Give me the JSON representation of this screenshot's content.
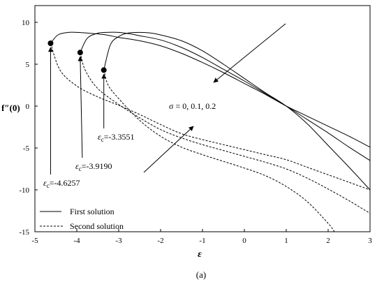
{
  "chart_data": {
    "type": "line",
    "title": "",
    "xlabel": "ε",
    "ylabel": "f″(0)",
    "xlim": [
      -5,
      3
    ],
    "ylim": [
      -15,
      12
    ],
    "x_ticks": [
      -5,
      -4,
      -3,
      -2,
      -1,
      0,
      1,
      2,
      3
    ],
    "y_ticks": [
      10,
      5,
      0,
      -5,
      -10,
      -15
    ],
    "grid": false,
    "legend_position": "bottom-left",
    "legend": [
      {
        "label": "First solution",
        "style": "solid"
      },
      {
        "label": "Second solution",
        "style": "dashed"
      }
    ],
    "series": [
      {
        "branch": "first",
        "sigma": 0,
        "style": "solid",
        "x": [
          -4.6257,
          -4.45,
          -4.2,
          -4.0,
          -3.7,
          -3.3,
          -3.0,
          -2.5,
          -2.0,
          -1.5,
          -1.0,
          -0.5,
          0.0,
          0.5,
          1.0,
          1.5,
          2.0,
          2.5,
          3.0
        ],
        "y": [
          7.5,
          8.5,
          8.8,
          8.8,
          8.7,
          8.5,
          8.2,
          7.8,
          7.2,
          6.3,
          5.2,
          4.0,
          2.7,
          1.4,
          0.0,
          -1.2,
          -2.4,
          -3.6,
          -4.9
        ]
      },
      {
        "branch": "first",
        "sigma": 0.1,
        "style": "solid",
        "x": [
          -3.919,
          -3.75,
          -3.5,
          -3.3,
          -3.0,
          -2.7,
          -2.5,
          -2.0,
          -1.5,
          -1.0,
          -0.5,
          0.0,
          0.5,
          1.0,
          1.5,
          2.0,
          2.5,
          3.0
        ],
        "y": [
          6.4,
          8.1,
          8.7,
          8.8,
          8.8,
          8.6,
          8.4,
          7.9,
          7.0,
          5.8,
          4.4,
          3.0,
          1.5,
          0.0,
          -1.6,
          -3.2,
          -4.9,
          -6.5
        ]
      },
      {
        "branch": "first",
        "sigma": 0.2,
        "style": "solid",
        "x": [
          -3.3551,
          -3.2,
          -3.0,
          -2.8,
          -2.5,
          -2.2,
          -2.0,
          -1.5,
          -1.0,
          -0.5,
          0.0,
          0.5,
          1.0,
          1.5,
          2.0,
          2.5,
          3.0
        ],
        "y": [
          4.3,
          7.3,
          8.3,
          8.7,
          8.8,
          8.7,
          8.5,
          7.8,
          6.6,
          5.0,
          3.3,
          1.6,
          0.0,
          -2.1,
          -4.7,
          -7.3,
          -10.0
        ]
      },
      {
        "branch": "second",
        "sigma": 0,
        "style": "dashed",
        "x": [
          -4.6257,
          -4.4,
          -4.0,
          -3.5,
          -3.0,
          -2.5,
          -2.0,
          -1.5,
          -1.0,
          -0.5,
          0.0,
          0.5,
          1.0,
          1.5,
          2.0,
          2.5,
          3.0
        ],
        "y": [
          7.5,
          4.3,
          2.4,
          1.1,
          0.1,
          -1.0,
          -2.2,
          -3.3,
          -4.0,
          -4.6,
          -5.2,
          -5.8,
          -6.4,
          -7.3,
          -8.2,
          -9.1,
          -10.0
        ]
      },
      {
        "branch": "second",
        "sigma": 0.1,
        "style": "dashed",
        "x": [
          -3.919,
          -3.8,
          -3.5,
          -3.0,
          -2.5,
          -2.0,
          -1.5,
          -1.0,
          -0.5,
          0.0,
          0.5,
          1.0,
          1.5,
          2.0,
          2.5,
          3.0
        ],
        "y": [
          6.4,
          4.3,
          2.1,
          0.2,
          -1.4,
          -2.8,
          -3.8,
          -4.6,
          -5.3,
          -6.0,
          -6.7,
          -7.5,
          -8.6,
          -9.9,
          -11.3,
          -12.8
        ]
      },
      {
        "branch": "second",
        "sigma": 0.2,
        "style": "dashed",
        "x": [
          -3.3551,
          -3.25,
          -3.0,
          -2.5,
          -2.0,
          -1.5,
          -1.0,
          -0.5,
          0.0,
          0.5,
          1.0,
          1.5,
          2.0,
          2.15
        ],
        "y": [
          4.3,
          2.5,
          0.9,
          -1.7,
          -3.6,
          -4.9,
          -5.8,
          -6.6,
          -7.4,
          -8.3,
          -9.6,
          -11.4,
          -14.0,
          -15.0
        ]
      }
    ],
    "critical_points": [
      {
        "x": -4.6257,
        "y": 7.5
      },
      {
        "x": -3.919,
        "y": 6.4
      },
      {
        "x": -3.3551,
        "y": 4.3
      }
    ],
    "annotations": [
      {
        "id": "sigma",
        "text": "σ = 0, 0.1, 0.2"
      },
      {
        "id": "ec1",
        "symbol": "ε",
        "sub": "c",
        "value": "=-4.6257"
      },
      {
        "id": "ec2",
        "symbol": "ε",
        "sub": "c",
        "value": "=-3.9190"
      },
      {
        "id": "ec3",
        "symbol": "ε",
        "sub": "c",
        "value": "=-3.3551"
      }
    ]
  },
  "caption": "(a)"
}
